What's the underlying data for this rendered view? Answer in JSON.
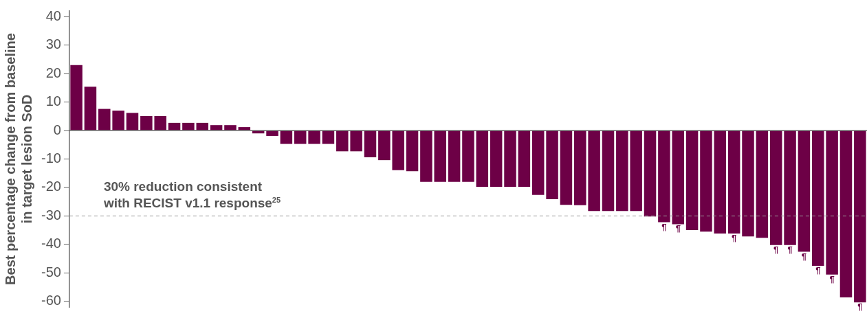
{
  "chart_data": {
    "type": "bar",
    "ylabel": "Best percentage change from baseline\nin target lesion SoD",
    "categories": [
      null,
      null,
      null,
      null,
      null,
      null,
      null,
      null,
      null,
      null,
      null,
      null,
      null,
      null,
      null,
      null,
      null,
      null,
      null,
      null,
      null,
      null,
      null,
      null,
      null,
      null,
      null,
      null,
      null,
      null,
      null,
      null,
      null,
      null,
      null,
      null,
      null,
      null,
      null,
      null,
      null,
      null,
      null,
      null,
      null,
      null,
      null,
      null,
      null,
      null,
      null,
      null,
      null,
      null,
      null,
      null,
      null
    ],
    "values": [
      23,
      15.4,
      7.6,
      7,
      6.2,
      5.1,
      5.1,
      2.7,
      2.7,
      2.7,
      1.9,
      1.9,
      1.2,
      -1,
      -1.9,
      -4.7,
      -4.7,
      -4.7,
      -4.7,
      -7.3,
      -7.3,
      -9.4,
      -10.4,
      -13.9,
      -14.3,
      -18,
      -18,
      -18,
      -18,
      -19.8,
      -19.8,
      -19.8,
      -19.8,
      -22.6,
      -24.1,
      -26.1,
      -26.2,
      -28.3,
      -28.3,
      -28.3,
      -28.3,
      -30.2,
      -32.2,
      -32.9,
      -35,
      -35.5,
      -36.2,
      -36.2,
      -37.2,
      -37.7,
      -40.2,
      -40.2,
      -42.6,
      -47.5,
      -50.6,
      -58.6,
      -60.4
    ],
    "value_labels": [
      null,
      null,
      null,
      null,
      null,
      null,
      null,
      null,
      null,
      null,
      null,
      null,
      null,
      null,
      null,
      null,
      null,
      null,
      null,
      null,
      null,
      null,
      null,
      null,
      null,
      null,
      null,
      null,
      null,
      null,
      null,
      null,
      null,
      null,
      null,
      null,
      null,
      null,
      null,
      null,
      null,
      null,
      "¶",
      "¶",
      null,
      null,
      null,
      "¶",
      null,
      null,
      "¶",
      "¶",
      "¶",
      "¶",
      "¶",
      null,
      "¶"
    ],
    "color": "#6d0046",
    "ylim": [
      -62,
      42
    ],
    "yticks": [
      -60,
      -50,
      -40,
      -30,
      -20,
      -10,
      0,
      10,
      20,
      30,
      40
    ],
    "ref_lines": [
      {
        "axis": "y",
        "value": -30,
        "label": "30% reduction consistent\nwith RECIST v1.1 response$^{25}$",
        "color": "#999999",
        "line_style": "dashed"
      }
    ],
    "tick_labels": "y",
    "grid": false,
    "legend": false
  }
}
